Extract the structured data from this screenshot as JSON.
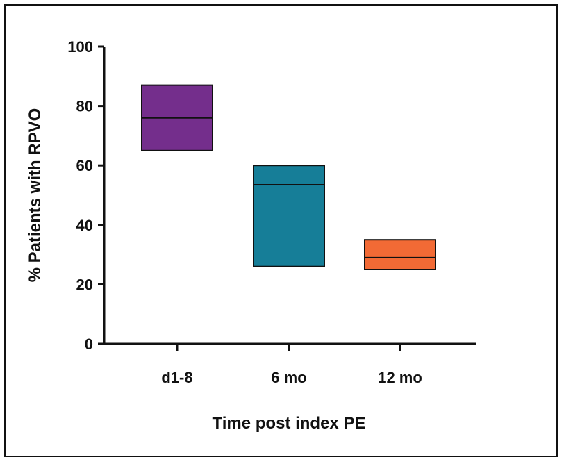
{
  "chart_data": {
    "type": "box",
    "title": "",
    "xlabel": "Time post index PE",
    "ylabel": "% Patients with RPVO",
    "ylim": [
      0,
      100
    ],
    "yticks": [
      0,
      20,
      40,
      60,
      80,
      100
    ],
    "categories": [
      "d1-8",
      "6 mo",
      "12 mo"
    ],
    "boxes": [
      {
        "category": "d1-8",
        "low": 65,
        "median": 76,
        "high": 87,
        "color": "#742E8C"
      },
      {
        "category": "6 mo",
        "low": 26,
        "median": 53.5,
        "high": 60,
        "color": "#167E98"
      },
      {
        "category": "12 mo",
        "low": 25,
        "median": 29,
        "high": 35,
        "color": "#F26A35"
      }
    ],
    "grid": false,
    "legend": "none"
  }
}
